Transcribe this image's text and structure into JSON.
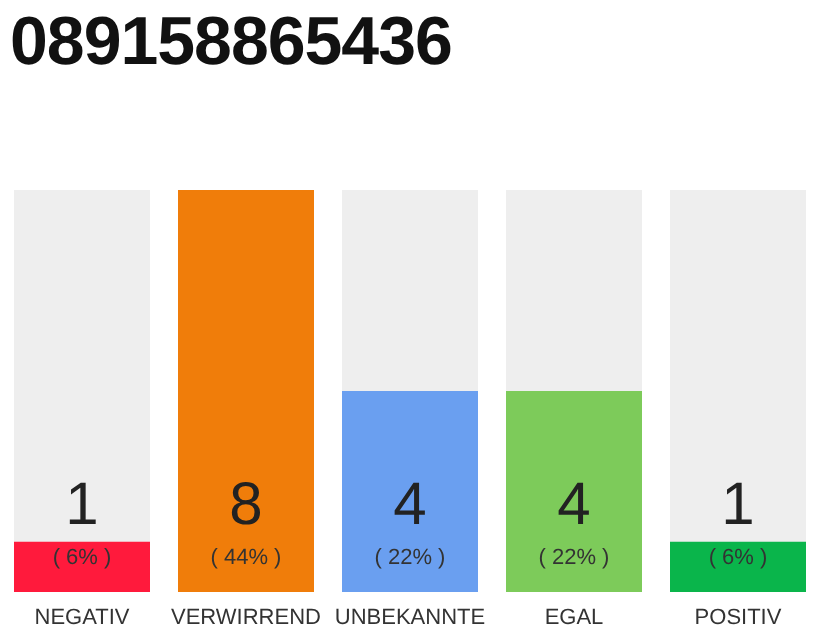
{
  "chart_data": {
    "type": "bar",
    "title": "089158865436",
    "categories": [
      "NEGATIV",
      "VERWIRREND",
      "UNBEKANNTE",
      "EGAL",
      "POSITIV"
    ],
    "values": [
      1,
      8,
      4,
      4,
      1
    ],
    "colors": [
      "#ff1a3c",
      "#f07d0a",
      "#6a9ff0",
      "#7dcb5a",
      "#0ab54b"
    ],
    "data_labels": true,
    "annotations": [
      "( 6% )",
      "( 44% )",
      "( 22% )",
      "( 22% )",
      "( 6% )"
    ],
    "tick_labels": "x"
  }
}
